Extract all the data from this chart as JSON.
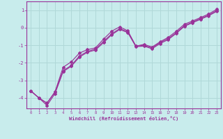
{
  "xlabel": "Windchill (Refroidissement éolien,°C)",
  "background_color": "#c8ecec",
  "grid_color": "#b0d8d8",
  "line_color": "#993399",
  "xlim": [
    -0.5,
    23.5
  ],
  "ylim": [
    -4.6,
    1.5
  ],
  "yticks": [
    -4,
    -3,
    -2,
    -1,
    0,
    1
  ],
  "xticks": [
    0,
    1,
    2,
    3,
    4,
    5,
    6,
    7,
    8,
    9,
    10,
    11,
    12,
    13,
    14,
    15,
    16,
    17,
    18,
    19,
    20,
    21,
    22,
    23
  ],
  "curve1_x": [
    0,
    1,
    2,
    3,
    4,
    5,
    6,
    7,
    8,
    9,
    10,
    11,
    12,
    13,
    14,
    15,
    16,
    17,
    18,
    19,
    20,
    21,
    22,
    23
  ],
  "curve1_y": [
    -3.6,
    -4.0,
    -4.3,
    -3.65,
    -2.25,
    -1.95,
    -1.45,
    -1.25,
    -1.15,
    -0.65,
    -0.2,
    0.05,
    -0.18,
    -1.05,
    -0.95,
    -1.1,
    -0.8,
    -0.55,
    -0.2,
    0.2,
    0.38,
    0.58,
    0.78,
    1.05
  ],
  "curve2_x": [
    0,
    1,
    2,
    3,
    4,
    5,
    6,
    7,
    8,
    9,
    10,
    11,
    12,
    13,
    14,
    15,
    16,
    17,
    18,
    19,
    20,
    21,
    22,
    23
  ],
  "curve2_y": [
    -3.6,
    -4.0,
    -4.3,
    -3.65,
    -2.45,
    -2.15,
    -1.62,
    -1.35,
    -1.22,
    -0.78,
    -0.35,
    -0.05,
    -0.23,
    -1.05,
    -1.0,
    -1.15,
    -0.85,
    -0.62,
    -0.28,
    0.12,
    0.32,
    0.52,
    0.72,
    0.98
  ],
  "curve3_x": [
    0,
    1,
    2,
    3,
    4,
    5,
    6,
    7,
    8,
    9,
    10,
    11,
    12,
    13,
    14,
    15,
    16,
    17,
    18,
    19,
    20,
    21,
    22,
    23
  ],
  "curve3_y": [
    -3.6,
    -4.0,
    -4.43,
    -3.75,
    -2.5,
    -2.2,
    -1.68,
    -1.4,
    -1.27,
    -0.85,
    -0.4,
    -0.1,
    -0.28,
    -1.08,
    -1.05,
    -1.2,
    -0.9,
    -0.68,
    -0.32,
    0.08,
    0.28,
    0.48,
    0.68,
    0.93
  ]
}
